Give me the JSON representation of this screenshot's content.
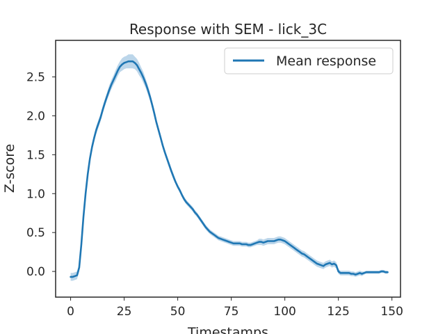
{
  "chart_data": {
    "type": "line",
    "title": "Response with SEM - lick_3C",
    "xlabel": "Timestamps",
    "ylabel": "Z-score",
    "xlim": [
      -7,
      154
    ],
    "ylim": [
      -0.33,
      2.97
    ],
    "xticks": [
      0,
      25,
      50,
      75,
      100,
      125,
      150
    ],
    "yticks": [
      0.0,
      0.5,
      1.0,
      1.5,
      2.0,
      2.5
    ],
    "grid": false,
    "legend": {
      "position": "top-right",
      "entries": [
        "Mean response"
      ]
    },
    "colors": {
      "line": "#1f77b4",
      "band": "#a6c8e3"
    },
    "series": [
      {
        "name": "Mean response",
        "x": [
          0,
          1,
          2,
          3,
          4,
          5,
          6,
          7,
          8,
          9,
          10,
          11,
          12,
          13,
          14,
          15,
          16,
          17,
          18,
          19,
          20,
          21,
          22,
          23,
          24,
          25,
          26,
          27,
          28,
          29,
          30,
          31,
          32,
          33,
          34,
          35,
          36,
          37,
          38,
          39,
          40,
          41,
          42,
          43,
          44,
          45,
          46,
          47,
          48,
          49,
          50,
          51,
          52,
          53,
          54,
          55,
          56,
          57,
          58,
          59,
          60,
          61,
          62,
          63,
          64,
          65,
          66,
          67,
          68,
          69,
          70,
          71,
          72,
          73,
          74,
          75,
          76,
          77,
          78,
          79,
          80,
          81,
          82,
          83,
          84,
          85,
          86,
          87,
          88,
          89,
          90,
          91,
          92,
          93,
          94,
          95,
          96,
          97,
          98,
          99,
          100,
          101,
          102,
          103,
          104,
          105,
          106,
          107,
          108,
          109,
          110,
          111,
          112,
          113,
          114,
          115,
          116,
          117,
          118,
          119,
          120,
          121,
          122,
          123,
          124,
          125,
          126,
          127,
          128,
          129,
          130,
          131,
          132,
          133,
          134,
          135,
          136,
          137,
          138,
          139,
          140,
          141,
          142,
          143,
          144,
          145,
          146,
          147,
          148
        ],
        "y": [
          -0.07,
          -0.07,
          -0.06,
          -0.05,
          0.05,
          0.35,
          0.7,
          1.0,
          1.25,
          1.45,
          1.6,
          1.72,
          1.82,
          1.9,
          1.98,
          2.08,
          2.17,
          2.25,
          2.33,
          2.4,
          2.46,
          2.52,
          2.58,
          2.63,
          2.66,
          2.68,
          2.69,
          2.7,
          2.7,
          2.7,
          2.68,
          2.65,
          2.6,
          2.55,
          2.49,
          2.42,
          2.34,
          2.25,
          2.15,
          2.04,
          1.92,
          1.82,
          1.72,
          1.62,
          1.53,
          1.45,
          1.37,
          1.29,
          1.22,
          1.15,
          1.09,
          1.04,
          0.98,
          0.93,
          0.89,
          0.86,
          0.83,
          0.8,
          0.76,
          0.73,
          0.69,
          0.65,
          0.61,
          0.57,
          0.54,
          0.51,
          0.49,
          0.47,
          0.45,
          0.43,
          0.42,
          0.41,
          0.4,
          0.39,
          0.38,
          0.37,
          0.36,
          0.36,
          0.36,
          0.36,
          0.35,
          0.35,
          0.35,
          0.34,
          0.34,
          0.35,
          0.36,
          0.37,
          0.38,
          0.38,
          0.37,
          0.38,
          0.39,
          0.39,
          0.39,
          0.39,
          0.4,
          0.41,
          0.41,
          0.4,
          0.39,
          0.37,
          0.35,
          0.33,
          0.31,
          0.29,
          0.27,
          0.25,
          0.23,
          0.22,
          0.2,
          0.18,
          0.16,
          0.14,
          0.12,
          0.1,
          0.09,
          0.08,
          0.07,
          0.09,
          0.1,
          0.11,
          0.09,
          0.1,
          0.08,
          0.0,
          -0.02,
          -0.02,
          -0.02,
          -0.02,
          -0.02,
          -0.03,
          -0.03,
          -0.04,
          -0.03,
          -0.02,
          -0.03,
          -0.02,
          -0.01,
          -0.01,
          -0.01,
          -0.01,
          -0.01,
          -0.01,
          -0.01,
          0.0,
          0.0,
          -0.01,
          -0.01
        ],
        "sem": [
          0.05,
          0.05,
          0.05,
          0.05,
          0.05,
          0.05,
          0.05,
          0.05,
          0.05,
          0.05,
          0.05,
          0.05,
          0.05,
          0.05,
          0.05,
          0.05,
          0.05,
          0.05,
          0.06,
          0.06,
          0.06,
          0.07,
          0.07,
          0.07,
          0.08,
          0.08,
          0.08,
          0.09,
          0.09,
          0.09,
          0.08,
          0.08,
          0.08,
          0.07,
          0.07,
          0.06,
          0.06,
          0.05,
          0.05,
          0.05,
          0.04,
          0.04,
          0.04,
          0.04,
          0.04,
          0.04,
          0.04,
          0.04,
          0.04,
          0.03,
          0.03,
          0.03,
          0.03,
          0.03,
          0.03,
          0.03,
          0.03,
          0.03,
          0.03,
          0.03,
          0.03,
          0.03,
          0.03,
          0.03,
          0.03,
          0.03,
          0.03,
          0.03,
          0.03,
          0.03,
          0.03,
          0.03,
          0.03,
          0.03,
          0.03,
          0.03,
          0.03,
          0.03,
          0.03,
          0.03,
          0.03,
          0.03,
          0.03,
          0.03,
          0.03,
          0.03,
          0.03,
          0.03,
          0.04,
          0.04,
          0.04,
          0.04,
          0.04,
          0.04,
          0.04,
          0.04,
          0.04,
          0.04,
          0.04,
          0.04,
          0.04,
          0.04,
          0.04,
          0.04,
          0.04,
          0.04,
          0.04,
          0.04,
          0.04,
          0.04,
          0.04,
          0.04,
          0.04,
          0.04,
          0.04,
          0.04,
          0.04,
          0.04,
          0.04,
          0.04,
          0.04,
          0.04,
          0.04,
          0.04,
          0.04,
          0.03,
          0.03,
          0.03,
          0.03,
          0.03,
          0.03,
          0.03,
          0.03,
          0.03,
          0.03,
          0.03,
          0.03,
          0.02,
          0.02,
          0.02,
          0.02,
          0.02,
          0.02,
          0.02,
          0.02,
          0.02,
          0.02,
          0.02,
          0.02
        ]
      }
    ]
  }
}
